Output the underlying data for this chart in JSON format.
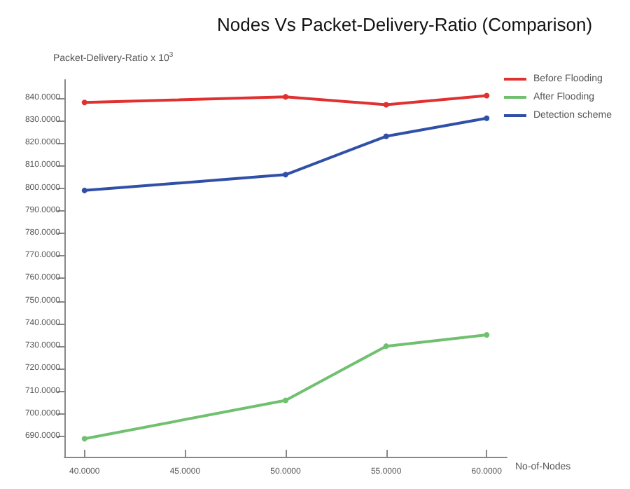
{
  "chart_data": {
    "type": "line",
    "title": "Nodes Vs Packet-Delivery-Ratio (Comparison)",
    "ylabel": "Packet-Delivery-Ratio x 10$^{3}$",
    "xlabel": "No-of-Nodes",
    "x": [
      40,
      50,
      55,
      60
    ],
    "series": [
      {
        "name": "Before Flooding",
        "color": "#e03030",
        "values": [
          838,
          840.5,
          837,
          841
        ]
      },
      {
        "name": "After Flooding",
        "color": "#70c070",
        "values": [
          689,
          706,
          730,
          735
        ]
      },
      {
        "name": "Detection scheme",
        "color": "#3050a8",
        "values": [
          799,
          806,
          823,
          831
        ]
      }
    ],
    "xlim": [
      39,
      61
    ],
    "xticks": [
      {
        "value": 40,
        "label": "40.0000"
      },
      {
        "value": 45,
        "label": "45.0000"
      },
      {
        "value": 50,
        "label": "50.0000"
      },
      {
        "value": 55,
        "label": "55.0000"
      },
      {
        "value": 60,
        "label": "60.0000"
      }
    ],
    "ylim": [
      681,
      848
    ],
    "yticks": [
      {
        "value": 690,
        "label": "690.0000"
      },
      {
        "value": 700,
        "label": "700.0000"
      },
      {
        "value": 710,
        "label": "710.0000"
      },
      {
        "value": 720,
        "label": "720.0000"
      },
      {
        "value": 730,
        "label": "730.0000"
      },
      {
        "value": 740,
        "label": "740.0000"
      },
      {
        "value": 750,
        "label": "750.0000"
      },
      {
        "value": 760,
        "label": "760.0000"
      },
      {
        "value": 770,
        "label": "770.0000"
      },
      {
        "value": 780,
        "label": "780.0000"
      },
      {
        "value": 790,
        "label": "790.0000"
      },
      {
        "value": 800,
        "label": "800.0000"
      },
      {
        "value": 810,
        "label": "810.0000"
      },
      {
        "value": 820,
        "label": "820.0000"
      },
      {
        "value": 830,
        "label": "830.0000"
      },
      {
        "value": 840,
        "label": "840.0000"
      }
    ],
    "grid": false,
    "legend": "top right",
    "marker": "circle",
    "line_style": "solid"
  }
}
